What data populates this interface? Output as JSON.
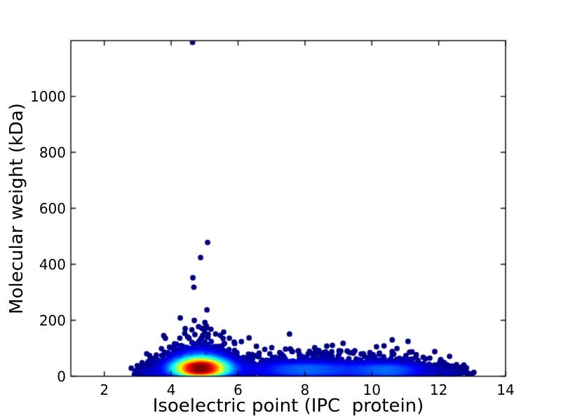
{
  "figure": {
    "background_color": "#ffffff",
    "axes_edge_color": "#000000",
    "tick_direction": "in"
  },
  "chart_data": {
    "type": "scatter",
    "subtype": "density-colored scatter (proteome: isoelectric point vs molecular weight)",
    "title": "",
    "xlabel": "Isoelectric point (IPC  protein)",
    "ylabel": "Molecular weight (kDa)",
    "xlim": [
      1,
      14
    ],
    "ylim": [
      0,
      1199
    ],
    "xticks": [
      2,
      4,
      6,
      8,
      10,
      12,
      14
    ],
    "yticks": [
      0,
      200,
      400,
      600,
      800,
      1000
    ],
    "grid": false,
    "legend": null,
    "colormap": "jet",
    "point_color_low": "#000080",
    "point_color_high": "#800000",
    "hotspot": {
      "pi": 4.87,
      "mw_kda": 30
    },
    "marker_radius_px": 3.9,
    "seed": 1234,
    "density_clusters": [
      {
        "name": "acidic-main",
        "count": 2400,
        "pi": 4.87,
        "pi_sd": 0.58,
        "mw_median": 30,
        "mw_log_sd": 0.6
      },
      {
        "name": "neutral-band",
        "count": 1250,
        "pi": 8.0,
        "pi_sd": 1.15,
        "mw_median": 24,
        "mw_log_sd": 0.58
      },
      {
        "name": "basic-cluster",
        "count": 800,
        "pi": 10.55,
        "pi_sd": 0.8,
        "mw_median": 22,
        "mw_log_sd": 0.58
      },
      {
        "name": "far-basic-tail",
        "count": 70,
        "pi": 12.2,
        "pi_sd": 0.38,
        "mw_median": 12,
        "mw_log_sd": 0.5
      },
      {
        "name": "acidic-left-tail",
        "count": 80,
        "pi": 3.35,
        "pi_sd": 0.32,
        "mw_median": 13,
        "mw_log_sd": 0.5
      }
    ],
    "outlier_points": [
      [
        4.64,
        1193
      ],
      [
        5.09,
        478
      ],
      [
        4.88,
        424
      ],
      [
        4.65,
        352
      ],
      [
        4.68,
        318
      ],
      [
        5.07,
        237
      ],
      [
        5.01,
        192
      ],
      [
        4.82,
        177
      ],
      [
        4.42,
        170
      ],
      [
        5.19,
        168
      ],
      [
        4.62,
        166
      ],
      [
        5.0,
        159
      ],
      [
        5.57,
        158
      ],
      [
        5.33,
        151
      ],
      [
        4.71,
        149
      ],
      [
        5.47,
        146
      ],
      [
        4.94,
        145
      ],
      [
        4.49,
        141
      ],
      [
        5.1,
        139
      ],
      [
        6.33,
        137
      ],
      [
        5.74,
        136
      ],
      [
        4.26,
        136
      ],
      [
        6.1,
        124
      ],
      [
        5.9,
        117
      ],
      [
        4.1,
        116
      ],
      [
        6.55,
        107
      ],
      [
        3.95,
        104
      ],
      [
        7.42,
        97
      ],
      [
        6.8,
        96
      ],
      [
        8.32,
        94
      ],
      [
        9.02,
        91
      ],
      [
        7.81,
        91
      ],
      [
        8.62,
        87
      ],
      [
        9.42,
        84
      ],
      [
        9.75,
        80
      ],
      [
        10.22,
        79
      ],
      [
        10.61,
        77
      ],
      [
        11.02,
        74
      ],
      [
        11.32,
        69
      ],
      [
        11.6,
        62
      ],
      [
        3.6,
        58
      ],
      [
        12.02,
        44
      ],
      [
        3.42,
        34
      ],
      [
        12.42,
        27
      ],
      [
        3.2,
        16
      ],
      [
        12.68,
        13
      ],
      [
        12.88,
        11
      ],
      [
        3.05,
        11
      ],
      [
        13.0,
        9
      ],
      [
        2.9,
        7
      ]
    ]
  }
}
